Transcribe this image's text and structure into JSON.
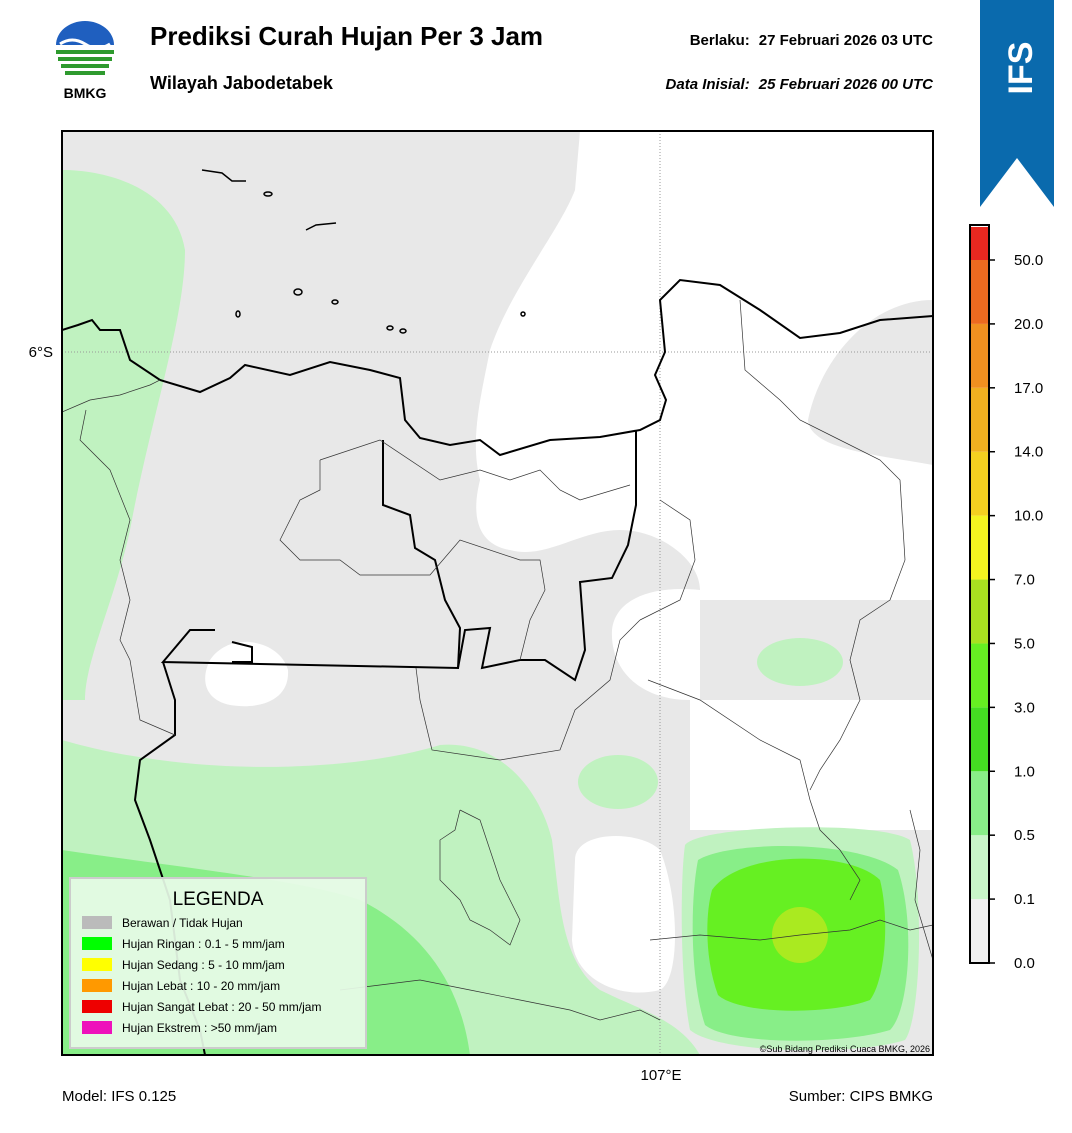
{
  "header": {
    "logo_text": "BMKG",
    "title": "Prediksi Curah Hujan Per 3 Jam",
    "subtitle": "Wilayah Jabodetabek",
    "valid_label": "Berlaku:",
    "valid_time": "27 Februari 2026 03 UTC",
    "init_label": "Data Inisial:",
    "init_time": "25 Februari 2026 00 UTC"
  },
  "badge": "IFS",
  "map": {
    "lat_label": "6°S",
    "lon_label": "107°E",
    "copyright": "©Sub Bidang Prediksi Cuaca BMKG, 2026"
  },
  "legend": {
    "title": "LEGENDA",
    "items": [
      {
        "label": "Berawan / Tidak Hujan",
        "color": "#bbbbbb"
      },
      {
        "label": "Hujan Ringan : 0.1 - 5 mm/jam",
        "color": "#00ff00"
      },
      {
        "label": "Hujan Sedang : 5 - 10 mm/jam",
        "color": "#ffff00"
      },
      {
        "label": "Hujan Lebat : 10 - 20 mm/jam",
        "color": "#ff9900"
      },
      {
        "label": "Hujan Sangat Lebat : 20 - 50 mm/jam",
        "color": "#ee0000"
      },
      {
        "label": "Hujan Ekstrem : >50 mm/jam",
        "color": "#ee11bb"
      }
    ]
  },
  "colorbar": {
    "ticks": [
      {
        "value": 0,
        "label": "0.0"
      },
      {
        "value": 0.1,
        "label": "0.1"
      },
      {
        "value": 0.5,
        "label": "0.5"
      },
      {
        "value": 1,
        "label": "1.0"
      },
      {
        "value": 3,
        "label": "3.0"
      },
      {
        "value": 5,
        "label": "5.0"
      },
      {
        "value": 7,
        "label": "7.0"
      },
      {
        "value": 10,
        "label": "10.0"
      },
      {
        "value": 14,
        "label": "14.0"
      },
      {
        "value": 17,
        "label": "17.0"
      },
      {
        "value": 20,
        "label": "20.0"
      },
      {
        "value": 50,
        "label": "50.0"
      }
    ],
    "colors": [
      "#f0f0f0",
      "#c8f5c8",
      "#88ee88",
      "#44dd22",
      "#66ee22",
      "#a8e020",
      "#f4f420",
      "#f4d020",
      "#f0b020",
      "#f09020",
      "#ec6a20",
      "#e82820",
      "#e020c0"
    ]
  },
  "footer": {
    "model": "Model: IFS 0.125",
    "source": "Sumber: CIPS BMKG"
  }
}
